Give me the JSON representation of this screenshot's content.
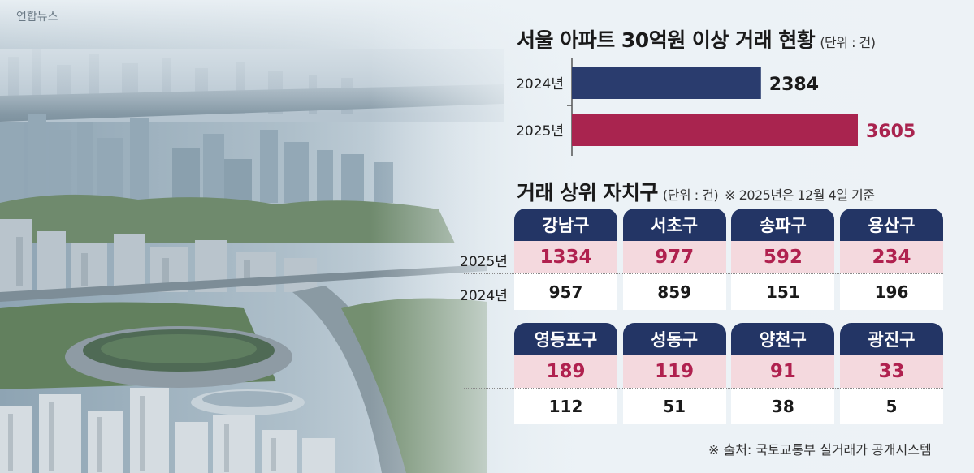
{
  "agency": "연합뉴스",
  "bar_chart": {
    "title": "서울 아파트 30억원 이상 거래 현황",
    "unit": "(단위 : 건)"
  },
  "table": {
    "title": "거래 상위 자치구",
    "unit": "(단위 : 건)",
    "note": "※ 2025년은 12월 4일 기준",
    "row_labels": [
      "2025년",
      "2024년"
    ],
    "districts": [
      {
        "name": "강남구",
        "y2025": "1334",
        "y2024": "957"
      },
      {
        "name": "서초구",
        "y2025": "977",
        "y2024": "859"
      },
      {
        "name": "송파구",
        "y2025": "592",
        "y2024": "151"
      },
      {
        "name": "용산구",
        "y2025": "234",
        "y2024": "196"
      },
      {
        "name": "영등포구",
        "y2025": "189",
        "y2024": "112"
      },
      {
        "name": "성동구",
        "y2025": "119",
        "y2024": "51"
      },
      {
        "name": "양천구",
        "y2025": "91",
        "y2024": "38"
      },
      {
        "name": "광진구",
        "y2025": "33",
        "y2024": "5"
      }
    ]
  },
  "source": "※ 출처: 국토교통부 실거래가 공개시스템",
  "colors": {
    "navy": "#233565",
    "crimson": "#a9244f",
    "pink": "#f4d9de"
  },
  "chart_data": [
    {
      "type": "bar",
      "orientation": "horizontal",
      "title": "서울 아파트 30억원 이상 거래 현황",
      "unit": "(단위 : 건)",
      "categories": [
        "2024년",
        "2025년"
      ],
      "values": [
        2384,
        3605
      ],
      "colors": [
        "#2a3c6e",
        "#a9244f"
      ]
    },
    {
      "type": "table",
      "title": "거래 상위 자치구",
      "columns": [
        "강남구",
        "서초구",
        "송파구",
        "용산구",
        "영등포구",
        "성동구",
        "양천구",
        "광진구"
      ],
      "series": [
        {
          "name": "2025년",
          "values": [
            1334,
            977,
            592,
            234,
            189,
            119,
            91,
            33
          ]
        },
        {
          "name": "2024년",
          "values": [
            957,
            859,
            151,
            196,
            112,
            51,
            38,
            5
          ]
        }
      ]
    }
  ]
}
